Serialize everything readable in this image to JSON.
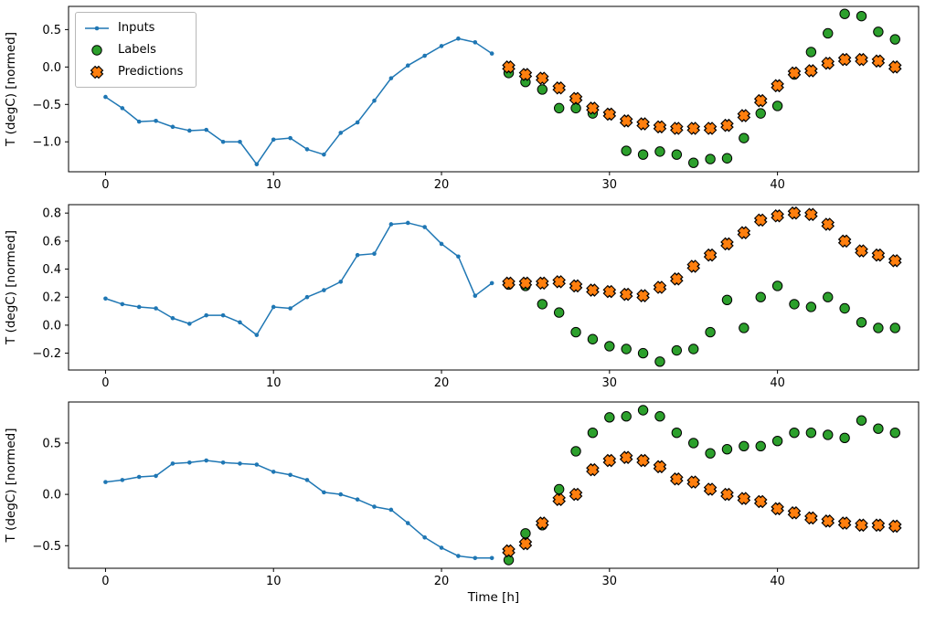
{
  "figure": {
    "xlabel": "Time [h]",
    "ylabel": "T (degC) [normed]",
    "background": "#ffffff"
  },
  "legend": {
    "position": "top-left",
    "items": [
      {
        "label": "Inputs",
        "marker": "line-with-dot",
        "color": "#1f77b4",
        "edge_color": "#1f77b4"
      },
      {
        "label": "Labels",
        "marker": "filled-circle",
        "color": "#2ca02c",
        "edge_color": "#000000"
      },
      {
        "label": "Predictions",
        "marker": "filled-x",
        "color": "#ff7f0e",
        "edge_color": "#000000"
      }
    ]
  },
  "chart_data": [
    {
      "type": "line",
      "subplot": 1,
      "title": "",
      "xlabel": "",
      "ylabel": "T (degC) [normed]",
      "xlim": [
        -2.2,
        48.4
      ],
      "ylim": [
        -1.4,
        0.81
      ],
      "xticks": [
        0,
        10,
        20,
        30,
        40
      ],
      "yticks": [
        0.5,
        0.0,
        -0.5,
        -1.0
      ],
      "grid": false,
      "legend_position": "upper left",
      "series": [
        {
          "name": "Inputs",
          "marker": "line-with-dot",
          "color": "#1f77b4",
          "x": [
            0,
            1,
            2,
            3,
            4,
            5,
            6,
            7,
            8,
            9,
            10,
            11,
            12,
            13,
            14,
            15,
            16,
            17,
            18,
            19,
            20,
            21,
            22,
            23
          ],
          "y": [
            -0.4,
            -0.55,
            -0.73,
            -0.72,
            -0.8,
            -0.85,
            -0.84,
            -1.0,
            -1.0,
            -1.3,
            -0.97,
            -0.95,
            -1.1,
            -1.17,
            -0.88,
            -0.74,
            -0.45,
            -0.15,
            0.02,
            0.15,
            0.28,
            0.38,
            0.33,
            0.18
          ]
        },
        {
          "name": "Labels",
          "marker": "filled-circle",
          "color": "#2ca02c",
          "x": [
            24,
            25,
            26,
            27,
            28,
            29,
            30,
            31,
            32,
            33,
            34,
            35,
            36,
            37,
            38,
            39,
            40,
            41,
            42,
            43,
            44,
            45,
            46,
            47
          ],
          "y": [
            -0.08,
            -0.2,
            -0.3,
            -0.55,
            -0.55,
            -0.62,
            -0.63,
            -1.12,
            -1.17,
            -1.13,
            -1.17,
            -1.28,
            -1.23,
            -1.22,
            -0.95,
            -0.62,
            -0.52,
            -0.1,
            0.2,
            0.45,
            0.71,
            0.68,
            0.47,
            0.37
          ]
        },
        {
          "name": "Predictions",
          "marker": "filled-x",
          "color": "#ff7f0e",
          "x": [
            24,
            25,
            26,
            27,
            28,
            29,
            30,
            31,
            32,
            33,
            34,
            35,
            36,
            37,
            38,
            39,
            40,
            41,
            42,
            43,
            44,
            45,
            46,
            47
          ],
          "y": [
            0.0,
            -0.1,
            -0.15,
            -0.28,
            -0.42,
            -0.55,
            -0.63,
            -0.72,
            -0.76,
            -0.8,
            -0.82,
            -0.82,
            -0.82,
            -0.78,
            -0.65,
            -0.45,
            -0.25,
            -0.08,
            -0.05,
            0.05,
            0.1,
            0.1,
            0.08,
            0.0
          ]
        }
      ]
    },
    {
      "type": "line",
      "subplot": 2,
      "title": "",
      "xlabel": "",
      "ylabel": "T (degC) [normed]",
      "xlim": [
        -2.2,
        48.4
      ],
      "ylim": [
        -0.32,
        0.86
      ],
      "xticks": [
        0,
        10,
        20,
        30,
        40
      ],
      "yticks": [
        0.8,
        0.6,
        0.4,
        0.2,
        0.0,
        -0.2
      ],
      "grid": false,
      "series": [
        {
          "name": "Inputs",
          "marker": "line-with-dot",
          "color": "#1f77b4",
          "x": [
            0,
            1,
            2,
            3,
            4,
            5,
            6,
            7,
            8,
            9,
            10,
            11,
            12,
            13,
            14,
            15,
            16,
            17,
            18,
            19,
            20,
            21,
            22,
            23
          ],
          "y": [
            0.19,
            0.15,
            0.13,
            0.12,
            0.05,
            0.01,
            0.07,
            0.07,
            0.02,
            -0.07,
            0.13,
            0.12,
            0.2,
            0.25,
            0.31,
            0.5,
            0.51,
            0.72,
            0.73,
            0.7,
            0.58,
            0.49,
            0.21,
            0.3
          ]
        },
        {
          "name": "Labels",
          "marker": "filled-circle",
          "color": "#2ca02c",
          "x": [
            24,
            25,
            26,
            27,
            28,
            29,
            30,
            31,
            32,
            33,
            34,
            35,
            36,
            37,
            38,
            39,
            40,
            41,
            42,
            43,
            44,
            45,
            46,
            47
          ],
          "y": [
            0.29,
            0.28,
            0.15,
            0.09,
            -0.05,
            -0.1,
            -0.15,
            -0.17,
            -0.2,
            -0.26,
            -0.18,
            -0.17,
            -0.05,
            0.18,
            -0.02,
            0.2,
            0.28,
            0.15,
            0.13,
            0.2,
            0.12,
            0.02,
            -0.02,
            -0.02
          ]
        },
        {
          "name": "Predictions",
          "marker": "filled-x",
          "color": "#ff7f0e",
          "x": [
            24,
            25,
            26,
            27,
            28,
            29,
            30,
            31,
            32,
            33,
            34,
            35,
            36,
            37,
            38,
            39,
            40,
            41,
            42,
            43,
            44,
            45,
            46,
            47
          ],
          "y": [
            0.3,
            0.3,
            0.3,
            0.31,
            0.28,
            0.25,
            0.24,
            0.22,
            0.21,
            0.27,
            0.33,
            0.42,
            0.5,
            0.58,
            0.66,
            0.75,
            0.78,
            0.8,
            0.79,
            0.72,
            0.6,
            0.53,
            0.5,
            0.46
          ]
        }
      ]
    },
    {
      "type": "line",
      "subplot": 3,
      "title": "",
      "xlabel": "Time [h]",
      "ylabel": "T (degC) [normed]",
      "xlim": [
        -2.2,
        48.4
      ],
      "ylim": [
        -0.72,
        0.9
      ],
      "xticks": [
        0,
        10,
        20,
        30,
        40
      ],
      "yticks": [
        0.5,
        0.0,
        -0.5
      ],
      "grid": false,
      "series": [
        {
          "name": "Inputs",
          "marker": "line-with-dot",
          "color": "#1f77b4",
          "x": [
            0,
            1,
            2,
            3,
            4,
            5,
            6,
            7,
            8,
            9,
            10,
            11,
            12,
            13,
            14,
            15,
            16,
            17,
            18,
            19,
            20,
            21,
            22,
            23
          ],
          "y": [
            0.12,
            0.14,
            0.17,
            0.18,
            0.3,
            0.31,
            0.33,
            0.31,
            0.3,
            0.29,
            0.22,
            0.19,
            0.14,
            0.02,
            0.0,
            -0.05,
            -0.12,
            -0.15,
            -0.28,
            -0.42,
            -0.52,
            -0.6,
            -0.62,
            -0.62
          ]
        },
        {
          "name": "Labels",
          "marker": "filled-circle",
          "color": "#2ca02c",
          "x": [
            24,
            25,
            26,
            27,
            28,
            29,
            30,
            31,
            32,
            33,
            34,
            35,
            36,
            37,
            38,
            39,
            40,
            41,
            42,
            43,
            44,
            45,
            46,
            47
          ],
          "y": [
            -0.64,
            -0.38,
            -0.3,
            0.05,
            0.42,
            0.6,
            0.75,
            0.76,
            0.82,
            0.76,
            0.6,
            0.5,
            0.4,
            0.44,
            0.47,
            0.47,
            0.52,
            0.6,
            0.6,
            0.58,
            0.55,
            0.72,
            0.64,
            0.6
          ]
        },
        {
          "name": "Predictions",
          "marker": "filled-x",
          "color": "#ff7f0e",
          "x": [
            24,
            25,
            26,
            27,
            28,
            29,
            30,
            31,
            32,
            33,
            34,
            35,
            36,
            37,
            38,
            39,
            40,
            41,
            42,
            43,
            44,
            45,
            46,
            47
          ],
          "y": [
            -0.55,
            -0.48,
            -0.28,
            -0.05,
            0.0,
            0.24,
            0.33,
            0.36,
            0.33,
            0.27,
            0.15,
            0.12,
            0.05,
            0.0,
            -0.04,
            -0.07,
            -0.14,
            -0.18,
            -0.23,
            -0.26,
            -0.28,
            -0.3,
            -0.3,
            -0.31
          ]
        }
      ]
    }
  ]
}
